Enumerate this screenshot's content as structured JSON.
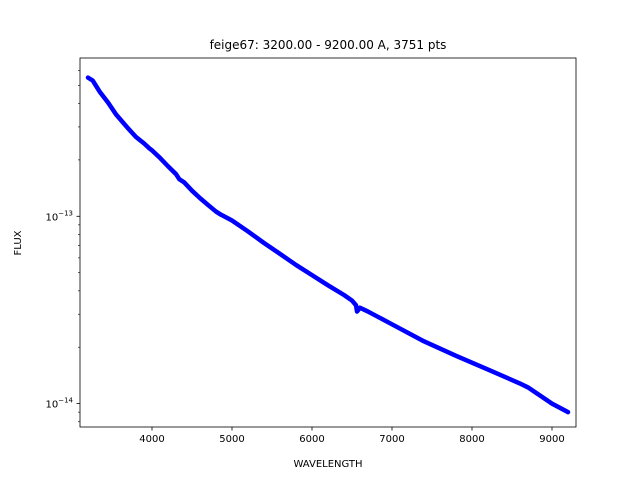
{
  "chart_data": {
    "type": "line",
    "title": "feige67: 3200.00 - 9200.00 A, 3751 pts",
    "xlabel": "WAVELENGTH",
    "ylabel": "FLUX",
    "xlim": [
      3100,
      9300
    ],
    "ylim": [
      7.5e-15,
      7e-13
    ],
    "yscale": "log",
    "grid": false,
    "legend": "none",
    "x_ticks": [
      4000,
      5000,
      6000,
      7000,
      8000,
      9000
    ],
    "x_tick_labels": [
      "4000",
      "5000",
      "6000",
      "7000",
      "8000",
      "9000"
    ],
    "y_ticks": [
      1e-13,
      1e-14
    ],
    "y_tick_labels": [
      {
        "base": "10",
        "exp": "−13"
      },
      {
        "base": "10",
        "exp": "−14"
      }
    ],
    "series": [
      {
        "color": "#0000ff",
        "x": [
          3200,
          3260,
          3350,
          3450,
          3550,
          3700,
          3800,
          3900,
          3970,
          4000,
          4100,
          4200,
          4300,
          4340,
          4400,
          4500,
          4600,
          4700,
          4800,
          4861,
          4900,
          5000,
          5200,
          5400,
          5600,
          5800,
          6000,
          6200,
          6400,
          6500,
          6550,
          6563,
          6600,
          6700,
          7000,
          7400,
          7800,
          8200,
          8600,
          8700,
          9000,
          9200
        ],
        "y": [
          5.5e-13,
          5.3e-13,
          4.6e-13,
          4.05e-13,
          3.5e-13,
          2.95e-13,
          2.65e-13,
          2.45e-13,
          2.3e-13,
          2.25e-13,
          2.05e-13,
          1.85e-13,
          1.68e-13,
          1.58e-13,
          1.52e-13,
          1.37e-13,
          1.25e-13,
          1.15e-13,
          1.06e-13,
          1.02e-13,
          1e-13,
          9.5e-14,
          8.3e-14,
          7.2e-14,
          6.3e-14,
          5.5e-14,
          4.85e-14,
          4.28e-14,
          3.8e-14,
          3.55e-14,
          3.35e-14,
          3.1e-14,
          3.25e-14,
          3.1e-14,
          2.65e-14,
          2.15e-14,
          1.8e-14,
          1.52e-14,
          1.28e-14,
          1.22e-14,
          1e-14,
          9e-15
        ]
      }
    ]
  }
}
